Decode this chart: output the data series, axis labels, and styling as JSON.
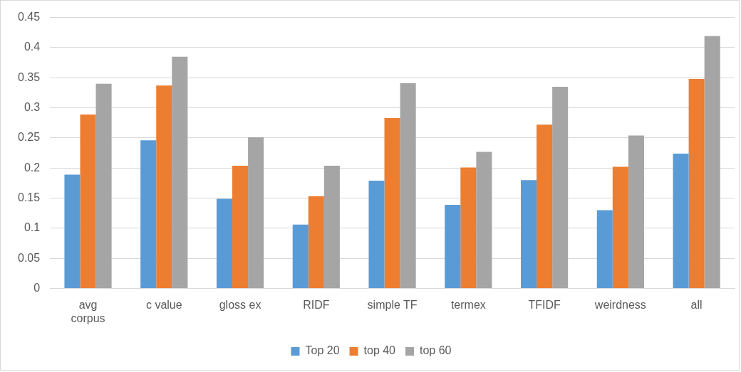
{
  "chart_data": {
    "type": "bar",
    "categories": [
      "avg\ncorpus",
      "c value",
      "gloss ex",
      "RIDF",
      "simple TF",
      "termex",
      "TFIDF",
      "weirdness",
      "all"
    ],
    "series": [
      {
        "name": "Top 20",
        "color": "#5b9bd5",
        "values": [
          0.189,
          0.246,
          0.149,
          0.106,
          0.179,
          0.139,
          0.18,
          0.13,
          0.224
        ]
      },
      {
        "name": "top 40",
        "color": "#ed7d31",
        "values": [
          0.289,
          0.337,
          0.204,
          0.153,
          0.283,
          0.201,
          0.272,
          0.202,
          0.348
        ]
      },
      {
        "name": "top 60",
        "color": "#a5a5a5",
        "values": [
          0.34,
          0.385,
          0.251,
          0.204,
          0.341,
          0.227,
          0.335,
          0.254,
          0.419
        ]
      }
    ],
    "ylim": [
      0,
      0.45
    ],
    "yticks": [
      0,
      0.05,
      0.1,
      0.15,
      0.2,
      0.25,
      0.3,
      0.35,
      0.4,
      0.45
    ],
    "grid": "y",
    "legend": "bottom"
  }
}
